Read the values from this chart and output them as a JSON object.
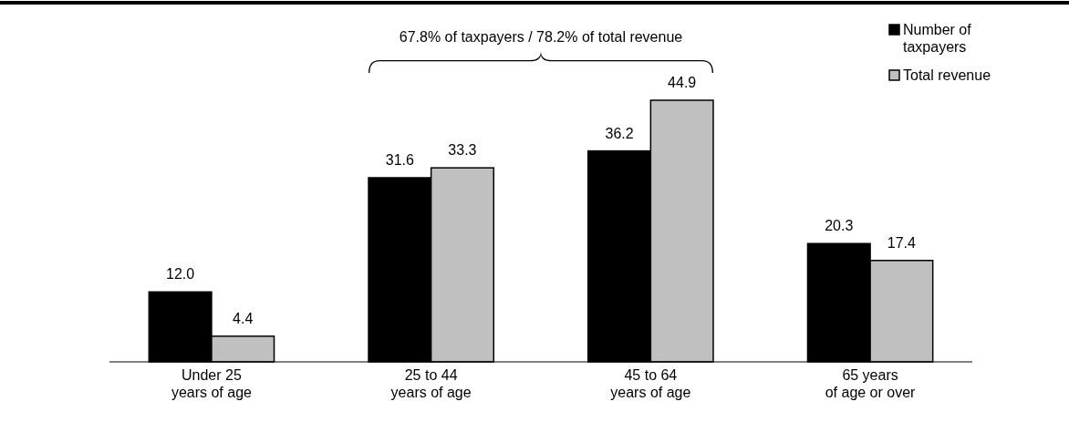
{
  "chart_data": {
    "type": "bar",
    "categories": [
      "Under 25\nyears of age",
      "25 to 44\nyears of age",
      "45 to 64\nyears of age",
      "65 years\nof age or over"
    ],
    "series": [
      {
        "name": "Number of\ntaxpayers",
        "color": "#000000",
        "values": [
          12.0,
          31.6,
          36.2,
          20.3
        ],
        "value_labels": [
          "12.0",
          "31.6",
          "36.2",
          "20.3"
        ]
      },
      {
        "name": "Total revenue",
        "color": "#c0c0c0",
        "values": [
          4.4,
          33.3,
          44.9,
          17.4
        ],
        "value_labels": [
          "4.4",
          "33.3",
          "44.9",
          "17.4"
        ]
      }
    ],
    "ylim": [
      0,
      44.9
    ],
    "tick_labels": "x",
    "legend": "top right",
    "annotations": [
      "67.8% of taxpayers / 78.2% of total revenue"
    ]
  }
}
